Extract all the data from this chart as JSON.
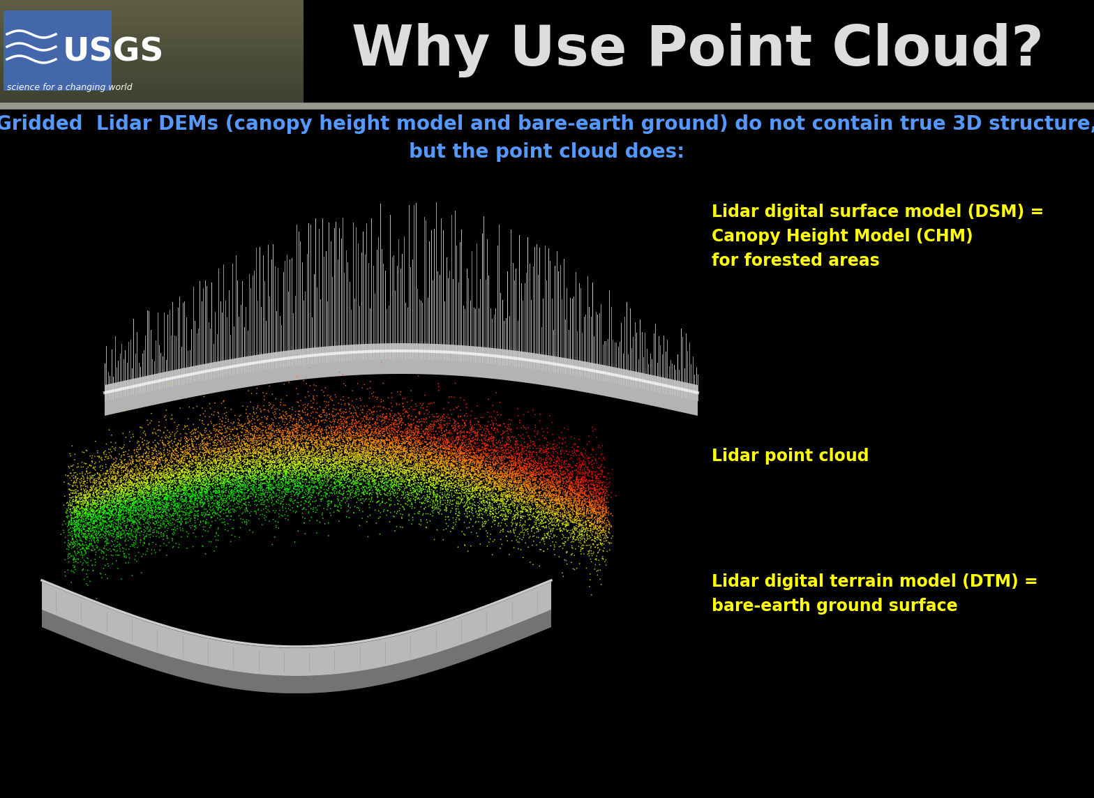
{
  "bg_color": "#000000",
  "header_bar_color": "#999990",
  "title_text": "Why Use Point Cloud?",
  "title_color": "#dddddd",
  "title_fontsize": 58,
  "subtitle_line1": "Gridded  Lidar DEMs (canopy height model and bare-earth ground) do not contain true 3D structure,",
  "subtitle_line2": "but the point cloud does:",
  "subtitle_color": "#5599ff",
  "subtitle_fontsize": 20,
  "label_dsm_line1": "Lidar digital surface model (DSM) =",
  "label_dsm_line2": "Canopy Height Model (CHM)",
  "label_dsm_line3": "for forested areas",
  "label_pc": "Lidar point cloud",
  "label_dtm_line1": "Lidar digital terrain model (DTM) =",
  "label_dtm_line2": "bare-earth ground surface",
  "label_color": "#ffff00",
  "label_fontsize": 17,
  "figsize": [
    15.68,
    11.44
  ],
  "dpi": 100
}
